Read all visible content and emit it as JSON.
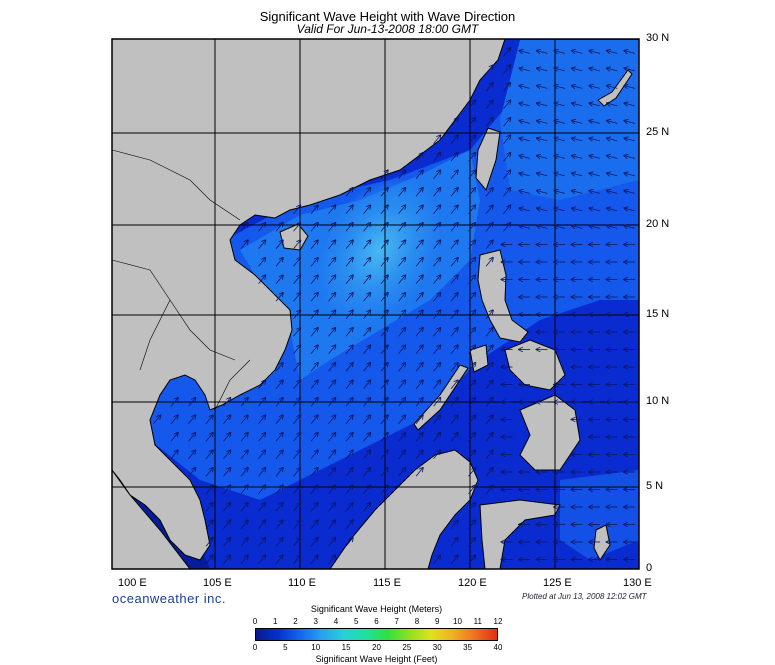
{
  "title": "Significant Wave Height with Wave Direction",
  "subtitle": "Valid For Jun-13-2008 18:00 GMT",
  "brand": "oceanweather inc.",
  "plotted": "Plotted at Jun 13, 2008 12:02 GMT",
  "lat_labels": [
    "30 N",
    "25 N",
    "20 N",
    "15 N",
    "10 N",
    "5 N",
    "0"
  ],
  "lon_labels": [
    "100 E",
    "105 E",
    "110 E",
    "115 E",
    "120 E",
    "125 E",
    "130 E"
  ],
  "colorbar": {
    "title_top": "Significant Wave Height (Meters)",
    "title_bottom": "Significant Wave Height (Feet)",
    "meters": [
      "0",
      "1",
      "2",
      "3",
      "4",
      "5",
      "6",
      "7",
      "8",
      "9",
      "10",
      "11",
      "12"
    ],
    "feet": [
      "0",
      "5",
      "10",
      "15",
      "20",
      "25",
      "30",
      "35",
      "40"
    ],
    "colors": [
      "#0a1a8a",
      "#0033cc",
      "#1466ee",
      "#2aa0f0",
      "#28d0d8",
      "#20e0a0",
      "#30e040",
      "#90e020",
      "#e0e020",
      "#f0b020",
      "#f07020",
      "#e03010"
    ]
  },
  "colors": {
    "land": "#c0c0c0",
    "sea_calm": "#0a2bd0",
    "sea_mid": "#1560ee",
    "sea_high": "#3aa8f0",
    "grid": "#000000"
  }
}
